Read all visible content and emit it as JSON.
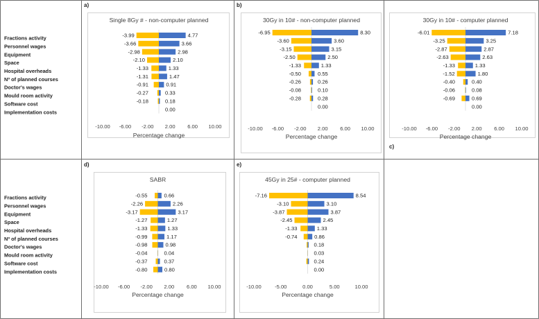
{
  "colors": {
    "decrease": "#ffc000",
    "increase": "#4472c4"
  },
  "panels": [
    {
      "tag": "a)",
      "chart_data": {
        "type": "bar",
        "orientation": "horizontal",
        "title": "Single 8Gy # - non-computer planned",
        "xlabel": "Percentage change",
        "xlim": [
          -10,
          10
        ],
        "xticks": [
          "-10.00",
          "-6.00",
          "-2.00",
          "2.00",
          "6.00",
          "10.00"
        ],
        "xtick_values": [
          -10,
          -6,
          -2,
          2,
          6,
          10
        ],
        "categories": [
          "Fractions activity",
          "Personnel wages",
          "Equipment",
          "Space",
          "Hospital overheads",
          "Nº of planned courses",
          "Doctor's wages",
          "Mould room activity",
          "Software cost",
          "Implementation costs"
        ],
        "series": [
          {
            "values": [
              -3.99,
              -3.66,
              -2.98,
              -2.1,
              -1.33,
              -1.31,
              -0.91,
              -0.27,
              -0.18,
              null
            ],
            "labels": [
              "-3.99",
              "-3.66",
              "-2.98",
              "-2.10",
              "-1.33",
              "-1.31",
              "-0.91",
              "-0.27",
              "-0.18",
              ""
            ]
          },
          {
            "values": [
              4.77,
              3.66,
              2.98,
              2.1,
              1.33,
              1.47,
              0.91,
              0.33,
              0.18,
              0.0
            ],
            "labels": [
              "4.77",
              "3.66",
              "2.98",
              "2.10",
              "1.33",
              "1.47",
              "0.91",
              "0.33",
              "0.18",
              "0.00"
            ]
          }
        ]
      }
    },
    {
      "tag": "b)",
      "chart_data": {
        "type": "bar",
        "orientation": "horizontal",
        "title": "30Gy in 10# - non-computer planned",
        "xlabel": "Percentage change",
        "xlim": [
          -10,
          10
        ],
        "xticks": [
          "-10.00",
          "-6.00",
          "-2.00",
          "2.00",
          "6.00",
          "10.00"
        ],
        "xtick_values": [
          -10,
          -6,
          -2,
          2,
          6,
          10
        ],
        "categories": [
          "Fractions activity",
          "Personnel wages",
          "Equipment",
          "Space",
          "Hospital overheads",
          "Nº of planned courses",
          "Doctor's wages",
          "Mould room activity",
          "Software cost",
          "Implementation costs"
        ],
        "series": [
          {
            "values": [
              -6.95,
              -3.6,
              -3.15,
              -2.5,
              -1.33,
              -0.5,
              -0.26,
              -0.08,
              -0.28,
              null
            ],
            "labels": [
              "-6.95",
              "-3.60",
              "-3.15",
              "-2.50",
              "-1.33",
              "-0.50",
              "-0.26",
              "-0.08",
              "-0.28",
              ""
            ]
          },
          {
            "values": [
              8.3,
              3.6,
              3.15,
              2.5,
              1.33,
              0.55,
              0.26,
              0.1,
              0.28,
              0.0
            ],
            "labels": [
              "8.30",
              "3.60",
              "3.15",
              "2.50",
              "1.33",
              "0.55",
              "0.26",
              "0.10",
              "0.28",
              "0.00"
            ]
          }
        ]
      }
    },
    {
      "tag": "c)",
      "chart_data": {
        "type": "bar",
        "orientation": "horizontal",
        "title": "30Gy in 10# - computer planned",
        "xlabel": "Percentage change",
        "xlim": [
          -10,
          10
        ],
        "xticks": [
          "-10.00",
          "-6.00",
          "-2.00",
          "2.00",
          "6.00",
          "10.00"
        ],
        "xtick_values": [
          -10,
          -6,
          -2,
          2,
          6,
          10
        ],
        "categories": [
          "Fractions activity",
          "Personnel wages",
          "Equipment",
          "Space",
          "Hospital overheads",
          "Nº of planned courses",
          "Doctor's wages",
          "Mould room activity",
          "Software cost",
          "Implementation costs"
        ],
        "series": [
          {
            "values": [
              -6.01,
              -3.25,
              -2.87,
              -2.63,
              -1.33,
              -1.52,
              -0.4,
              -0.06,
              -0.69,
              null
            ],
            "labels": [
              "-6.01",
              "-3.25",
              "-2.87",
              "-2.63",
              "-1.33",
              "-1.52",
              "-0.40",
              "-0.06",
              "-0.69",
              ""
            ]
          },
          {
            "values": [
              7.18,
              3.25,
              2.87,
              2.63,
              1.33,
              1.8,
              0.4,
              0.08,
              0.69,
              0.0
            ],
            "labels": [
              "7.18",
              "3.25",
              "2.87",
              "2.63",
              "1.33",
              "1.80",
              "0.40",
              "0.08",
              "0.69",
              "0.00"
            ]
          }
        ]
      }
    },
    {
      "tag": "d)",
      "chart_data": {
        "type": "bar",
        "orientation": "horizontal",
        "title": "SABR",
        "xlabel": "Percentage change",
        "xlim": [
          -10,
          10
        ],
        "xticks": [
          "-10.00",
          "-6.00",
          "-2.00",
          "2.00",
          "6.00",
          "10.00"
        ],
        "xtick_values": [
          -10,
          -6,
          -2,
          2,
          6,
          10
        ],
        "categories": [
          "Fractions activity",
          "Personnel wages",
          "Equipment",
          "Space",
          "Hospital overheads",
          "Nº of planned courses",
          "Doctor's wages",
          "Mould room activity",
          "Software cost",
          "Implementation costs"
        ],
        "series": [
          {
            "values": [
              -0.55,
              -2.26,
              -3.17,
              -1.27,
              -1.33,
              -0.99,
              -0.98,
              -0.04,
              -0.37,
              -0.8
            ],
            "labels": [
              "-0.55",
              "-2.26",
              "-3.17",
              "-1.27",
              "-1.33",
              "-0.99",
              "-0.98",
              "-0.04",
              "-0.37",
              "-0.80"
            ]
          },
          {
            "values": [
              0.66,
              2.26,
              3.17,
              1.27,
              1.33,
              1.17,
              0.98,
              0.04,
              0.37,
              0.8
            ],
            "labels": [
              "0.66",
              "2.26",
              "3.17",
              "1.27",
              "1.33",
              "1.17",
              "0.98",
              "0.04",
              "0.37",
              "0.80"
            ]
          }
        ]
      }
    },
    {
      "tag": "e)",
      "chart_data": {
        "type": "bar",
        "orientation": "horizontal",
        "title": "45Gy in 25# - computer planned",
        "xlabel": "Percentage change",
        "xlim": [
          -10,
          10
        ],
        "xticks": [
          "-10.00",
          "-5.00",
          "0.00",
          "5.00",
          "10.00"
        ],
        "xtick_values": [
          -10,
          -5,
          0,
          5,
          10
        ],
        "categories": [
          "Fractions activity",
          "Personnel wages",
          "Equipment",
          "Space",
          "Hospital overheads",
          "Nº of planned courses",
          "Doctor's wages",
          "Mould room activity",
          "Software cost",
          "Implementation costs"
        ],
        "series": [
          {
            "values": [
              -7.16,
              -3.1,
              -3.87,
              -2.45,
              -1.33,
              -0.74,
              -0.18,
              -0.03,
              -0.24,
              null
            ],
            "labels": [
              "-7.16",
              "-3.10",
              "-3.87",
              "-2.45",
              "-1.33",
              "-0.74",
              "",
              "",
              "",
              ""
            ]
          },
          {
            "values": [
              8.54,
              3.1,
              3.87,
              2.45,
              1.33,
              0.86,
              0.18,
              0.03,
              0.24,
              0.0
            ],
            "labels": [
              "8.54",
              "3.10",
              "3.87",
              "2.45",
              "1.33",
              "0.86",
              "0.18",
              "0.03",
              "0.24",
              "0.00"
            ]
          }
        ]
      }
    }
  ]
}
